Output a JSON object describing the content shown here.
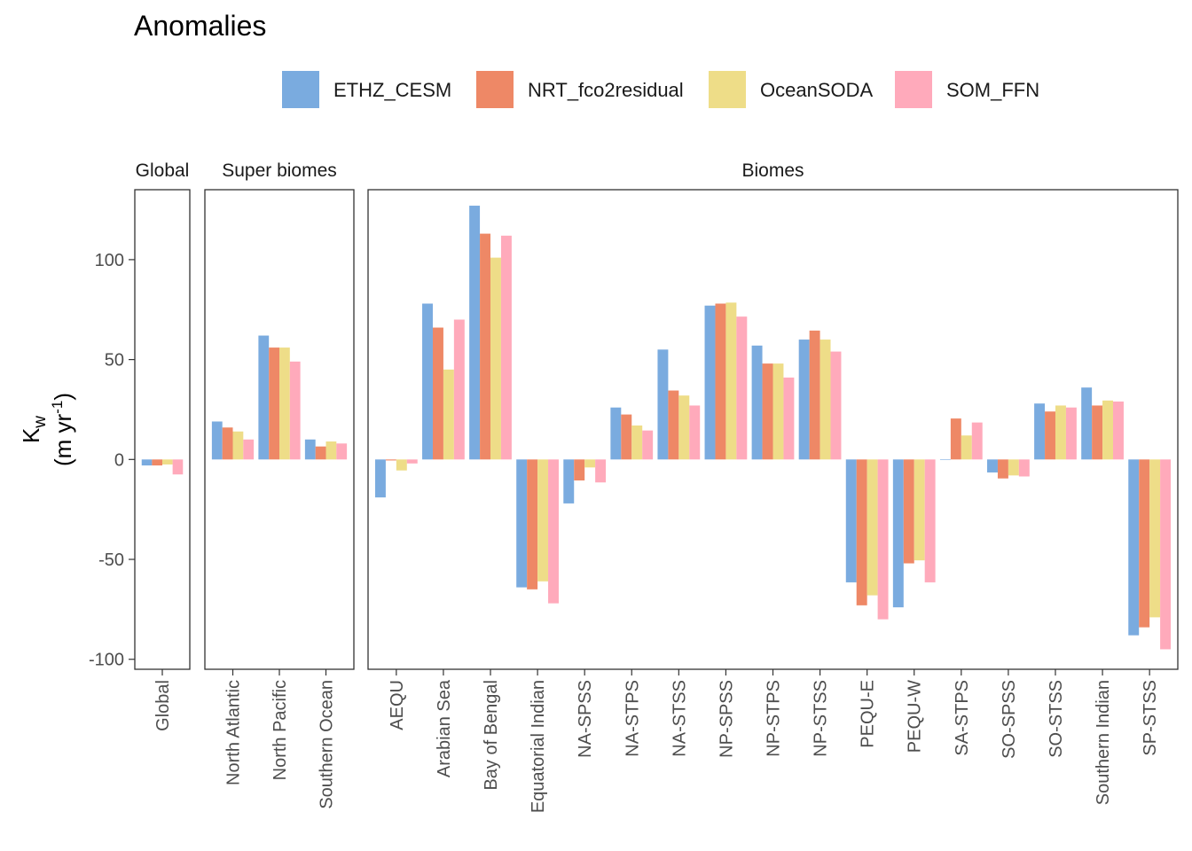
{
  "chart_data": {
    "type": "bar",
    "title": "Anomalies",
    "ylabel": {
      "main": "K",
      "sub": "w",
      "unit_prefix": "(m yr",
      "unit_sup": "-1",
      "unit_suffix": ")"
    },
    "xlabel": "",
    "ylim": [
      -105,
      135
    ],
    "yticks": [
      -100,
      -50,
      0,
      50,
      100
    ],
    "ytick_labels": [
      "-100",
      "-50",
      "0",
      "50",
      "100"
    ],
    "grid": false,
    "legend_position": "top",
    "series": [
      {
        "name": "ETHZ_CESM",
        "color": "#7aabdf"
      },
      {
        "name": "NRT_fco2residual",
        "color": "#ee8866"
      },
      {
        "name": "OceanSODA",
        "color": "#eedd88"
      },
      {
        "name": "SOM_FFN",
        "color": "#ffaabb"
      }
    ],
    "panels": [
      {
        "label": "Global",
        "categories": [
          "Global"
        ],
        "values": [
          [
            -3,
            -3,
            -2.5,
            -7.5
          ]
        ]
      },
      {
        "label": "Super biomes",
        "categories": [
          "North Atlantic",
          "North Pacific",
          "Southern Ocean"
        ],
        "values": [
          [
            19,
            16,
            14,
            10
          ],
          [
            62,
            56,
            56,
            49
          ],
          [
            10,
            6.5,
            9,
            8
          ]
        ]
      },
      {
        "label": "Biomes",
        "categories": [
          "AEQU",
          "Arabian Sea",
          "Bay of Bengal",
          "Equatorial Indian",
          "NA-SPSS",
          "NA-STPS",
          "NA-STSS",
          "NP-SPSS",
          "NP-STPS",
          "NP-STSS",
          "PEQU-E",
          "PEQU-W",
          "SA-STPS",
          "SO-SPSS",
          "SO-STSS",
          "Southern Indian",
          "SP-STSS"
        ],
        "values": [
          [
            -19,
            -0.5,
            -5.5,
            -2
          ],
          [
            78,
            66,
            45,
            70
          ],
          [
            127,
            113,
            101,
            112
          ],
          [
            -64,
            -65,
            -61,
            -72
          ],
          [
            -22,
            -10.5,
            -4,
            -11.5
          ],
          [
            26,
            22.5,
            17,
            14.5
          ],
          [
            55,
            34.5,
            32,
            27
          ],
          [
            77,
            78,
            78.5,
            71.5
          ],
          [
            57,
            48,
            48,
            41
          ],
          [
            60,
            64.5,
            60,
            54
          ],
          [
            -61.5,
            -73,
            -68,
            -80
          ],
          [
            -74,
            -52,
            -50.5,
            -61.5
          ],
          [
            0,
            20.5,
            12,
            18.5
          ],
          [
            -6.5,
            -9.5,
            -8,
            -8.5
          ],
          [
            28,
            24,
            27,
            26
          ],
          [
            36,
            27,
            29.5,
            29
          ],
          [
            -88,
            -84,
            -79,
            -95
          ]
        ]
      }
    ]
  }
}
